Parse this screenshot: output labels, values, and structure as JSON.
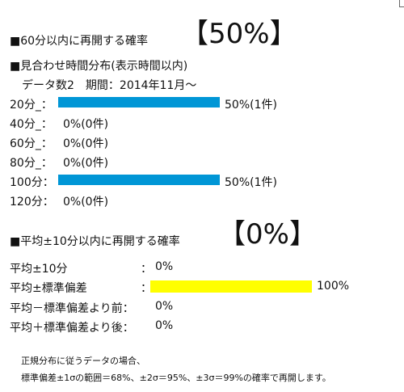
{
  "section1": {
    "title": "■60分以内に再開する確率",
    "percent": "【50%】"
  },
  "section2": {
    "title": "■見合わせ時間分布(表示時間以内)",
    "subtitle": "データ数2　期間：2014年11月～",
    "rows": [
      {
        "label": "20分_：",
        "value": "50%(1件)",
        "fraction": 0.5
      },
      {
        "label": "40分_：",
        "value": "0%(0件)",
        "fraction": 0
      },
      {
        "label": "60分_：",
        "value": "0%(0件)",
        "fraction": 0
      },
      {
        "label": "80分_：",
        "value": "0%(0件)",
        "fraction": 0
      },
      {
        "label": "100分：",
        "value": "50%(1件)",
        "fraction": 0.5
      },
      {
        "label": "120分：",
        "value": "0%(0件)",
        "fraction": 0
      }
    ]
  },
  "section3": {
    "title": "■平均±10分以内に再開する確率",
    "percent": "【0%】",
    "rows": [
      {
        "label": "平均±10分",
        "sep": "：",
        "value": "0%",
        "fraction": 0
      },
      {
        "label": "平均±標準偏差",
        "sep": "：",
        "value": "100%",
        "fraction": 1
      },
      {
        "label": "平均－標準偏差より前：",
        "sep": "",
        "value": "0%",
        "fraction": 0
      },
      {
        "label": "平均＋標準偏差より後：",
        "sep": "",
        "value": "0%",
        "fraction": 0
      }
    ]
  },
  "note": {
    "line1": "正規分布に従うデータの場合、",
    "line2": "標準偏差±1σの範囲＝68%、±2σ＝95%、±3σ＝99%の確率で再開します。"
  },
  "colors": {
    "bar_blue": "#0096d6",
    "bar_yellow": "#ffff00"
  }
}
